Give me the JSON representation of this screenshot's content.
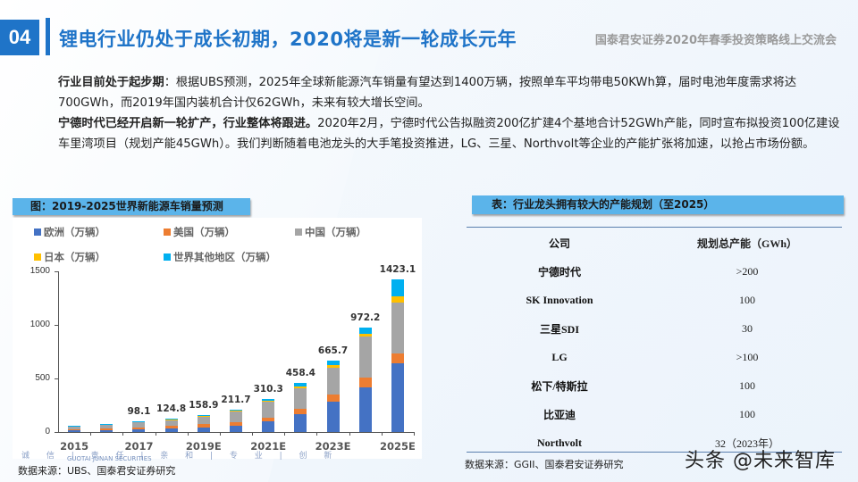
{
  "header": {
    "section_number": "04",
    "title": "锂电行业仍处于成长初期，2020将是新一轮成长元年",
    "org_event": "国泰君安证券2020年春季投资策略线上交流会"
  },
  "body": {
    "para1_bold": "行业目前处于起步期",
    "para1_text": "：根据UBS预测，2025年全球新能源汽车销量有望达到1400万辆，按照单车平均带电50KWh算，届时电池年度需求将达700GWh，而2019年国内装机合计仅62GWh，未来有较大增长空间。",
    "para2_bold": "宁德时代已经开启新一轮扩产，行业整体将跟进。",
    "para2_text": "2020年2月，宁德时代公告拟融资200亿扩建4个基地合计52GWh产能，同时宣布拟投资100亿建设车里湾项目（规划产能45GWh）。我们判断随着电池龙头的大手笔投资推进，LG、三星、Northvolt等企业的产能扩张将加速，以抢占市场份额。"
  },
  "chart_panel": {
    "banner": "图：2019-2025世界新能源车销量预测",
    "source": "数据来源：UBS、国泰君安证券研究",
    "logo_en": "GUOTAI JUNAN SECURITIES",
    "logo_strip": "诚 信 | 责 任 | 亲 和 | 专 业 | 创 新"
  },
  "chart_data": {
    "type": "bar",
    "stacked": true,
    "title": "2019-2025世界新能源车销量预测",
    "xlabel": "",
    "ylabel": "",
    "ylim": [
      0,
      1500
    ],
    "yticks": [
      0,
      500,
      1000,
      1500
    ],
    "ytick_labels": [
      "0",
      "500",
      "1000",
      "1500"
    ],
    "categories": [
      "2015",
      "2016",
      "2017",
      "2018",
      "2019E",
      "2020E",
      "2021E",
      "2022E",
      "2023E",
      "2024E",
      "2025E"
    ],
    "xtick_labels_shown": [
      "2015",
      "2017",
      "2019E",
      "2021E",
      "2023E",
      "2025E"
    ],
    "totals": [
      55,
      75,
      98.1,
      124.8,
      158.9,
      211.7,
      310.3,
      458.4,
      665.7,
      972.2,
      1423.1
    ],
    "total_labels": [
      "",
      "",
      "98.1",
      "124.8",
      "158.9",
      "211.7",
      "310.3",
      "458.4",
      "665.7",
      "972.2",
      "1423.1"
    ],
    "series": [
      {
        "name": "欧洲（万辆）",
        "color": "#4472c4",
        "values": [
          18,
          20,
          25,
          30,
          45,
          60,
          100,
          170,
          280,
          420,
          640
        ]
      },
      {
        "name": "美国（万辆）",
        "color": "#ed7d31",
        "values": [
          10,
          15,
          20,
          25,
          30,
          30,
          35,
          45,
          70,
          90,
          95
        ]
      },
      {
        "name": "中国（万辆）",
        "color": "#a5a5a5",
        "values": [
          22,
          33,
          45,
          55,
          70,
          100,
          150,
          195,
          250,
          380,
          475
        ]
      },
      {
        "name": "日本（万辆）",
        "color": "#ffc000",
        "values": [
          2,
          2,
          3,
          4,
          4,
          6,
          8,
          15,
          22,
          30,
          60
        ]
      },
      {
        "name": "世界其他地区（万辆）",
        "color": "#00b0f0",
        "values": [
          3,
          5,
          5.1,
          10.8,
          9.9,
          15.7,
          17.3,
          33.4,
          43.7,
          52.2,
          153.1
        ]
      }
    ],
    "legend_position": "top",
    "grid": false
  },
  "table_panel": {
    "banner": "表：行业龙头拥有较大的产能规划（至2025）",
    "headers": [
      "公司",
      "规划总产能（GWh）"
    ],
    "rows": [
      [
        "宁德时代",
        ">200"
      ],
      [
        "SK Innovation",
        "100"
      ],
      [
        "三星SDI",
        "30"
      ],
      [
        "LG",
        ">100"
      ],
      [
        "松下/特斯拉",
        "100"
      ],
      [
        "比亚迪",
        "100"
      ],
      [
        "Northvolt",
        "32（2023年）"
      ]
    ],
    "source": "数据来源：GGII、国泰君安证券研究"
  },
  "watermark": "头条 @未来智库"
}
